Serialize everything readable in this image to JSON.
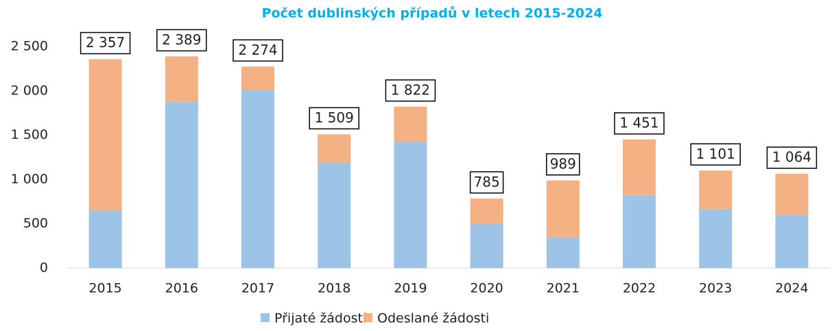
{
  "chart_data": {
    "type": "stacked-bar",
    "title": "Počet dublinských případů v letech 2015-2024",
    "categories": [
      "2015",
      "2016",
      "2017",
      "2018",
      "2019",
      "2020",
      "2021",
      "2022",
      "2023",
      "2024"
    ],
    "series": [
      {
        "name": "Přijaté žádosti",
        "color": "#9dc3e6",
        "values": [
          650,
          1880,
          2010,
          1195,
          1430,
          500,
          350,
          820,
          665,
          600
        ]
      },
      {
        "name": "Odeslané žádosti",
        "color": "#f4b183",
        "values": [
          1707,
          509,
          264,
          314,
          392,
          285,
          639,
          631,
          436,
          464
        ]
      }
    ],
    "totals": [
      2357,
      2389,
      2274,
      1509,
      1822,
      785,
      989,
      1451,
      1101,
      1064
    ],
    "total_labels": [
      "2 357",
      "2 389",
      "2 274",
      "1 509",
      "1 822",
      "785",
      "989",
      "1 451",
      "1 101",
      "1 064"
    ],
    "ylim": [
      0,
      2500
    ],
    "yticks": [
      0,
      500,
      {
        "value": 1000,
        "label": "1 000"
      },
      {
        "value": 1500,
        "label": "1 500"
      },
      {
        "value": 2000,
        "label": "2 000"
      },
      {
        "value": 2500,
        "label": "2 500"
      }
    ],
    "legend": "bottom"
  }
}
